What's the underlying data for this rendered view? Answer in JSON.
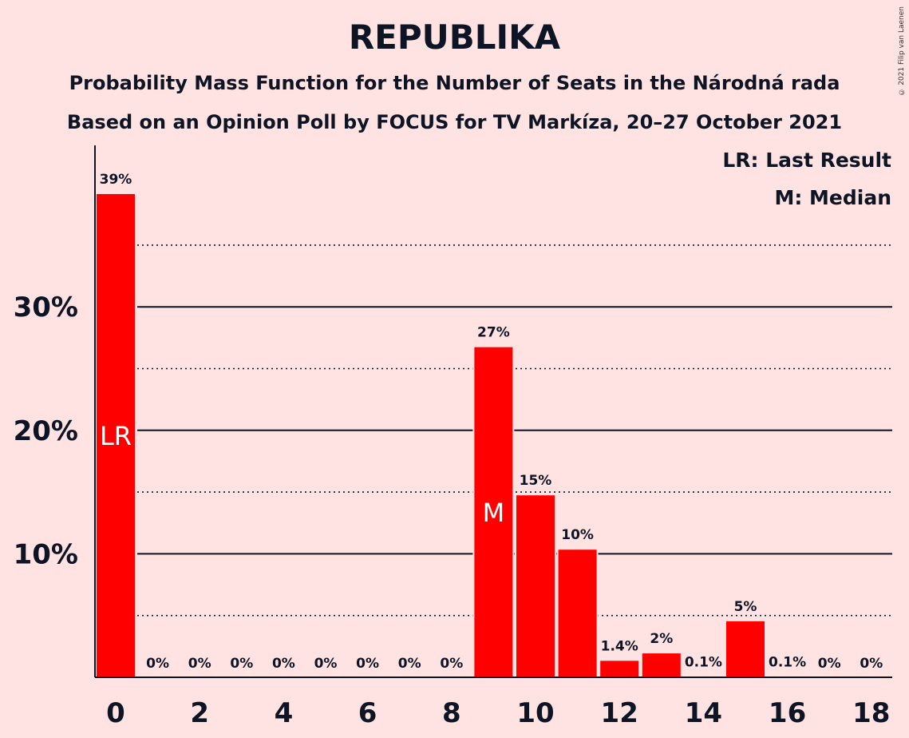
{
  "title": "REPUBLIKA",
  "subtitle_1": "Probability Mass Function for the Number of Seats in the Národná rada",
  "subtitle_2": "Based on an Opinion Poll by FOCUS for TV Markíza, 20–27 October 2021",
  "copyright": "© 2021 Filip van Laenen",
  "colors": {
    "bar": "#FF0000",
    "background": "#FFE2E2",
    "text": "#0D1423"
  },
  "chart_data": {
    "type": "bar",
    "x": [
      0,
      1,
      2,
      3,
      4,
      5,
      6,
      7,
      8,
      9,
      10,
      11,
      12,
      13,
      14,
      15,
      16,
      17,
      18
    ],
    "values": [
      39.2,
      0,
      0,
      0,
      0,
      0,
      0,
      0,
      0,
      26.8,
      14.8,
      10.4,
      1.4,
      2.0,
      0.1,
      4.6,
      0.1,
      0,
      0
    ],
    "labels": [
      "39%",
      "0%",
      "0%",
      "0%",
      "0%",
      "0%",
      "0%",
      "0%",
      "0%",
      "27%",
      "15%",
      "10%",
      "1.4%",
      "2%",
      "0.1%",
      "5%",
      "0.1%",
      "0%",
      "0%"
    ],
    "x_ticks": [
      "0",
      "2",
      "4",
      "6",
      "8",
      "10",
      "12",
      "14",
      "16",
      "18"
    ],
    "y_ticks": [
      "10%",
      "20%",
      "30%"
    ],
    "ylim": [
      0,
      43
    ],
    "markers": [
      {
        "seat": 0,
        "text": "LR"
      },
      {
        "seat": 9,
        "text": "M"
      }
    ],
    "legend": [
      "LR: Last Result",
      "M: Median"
    ],
    "legend_position": "top-right",
    "grid": "solid major lines at 10% steps, dotted minor lines at 5% steps"
  }
}
